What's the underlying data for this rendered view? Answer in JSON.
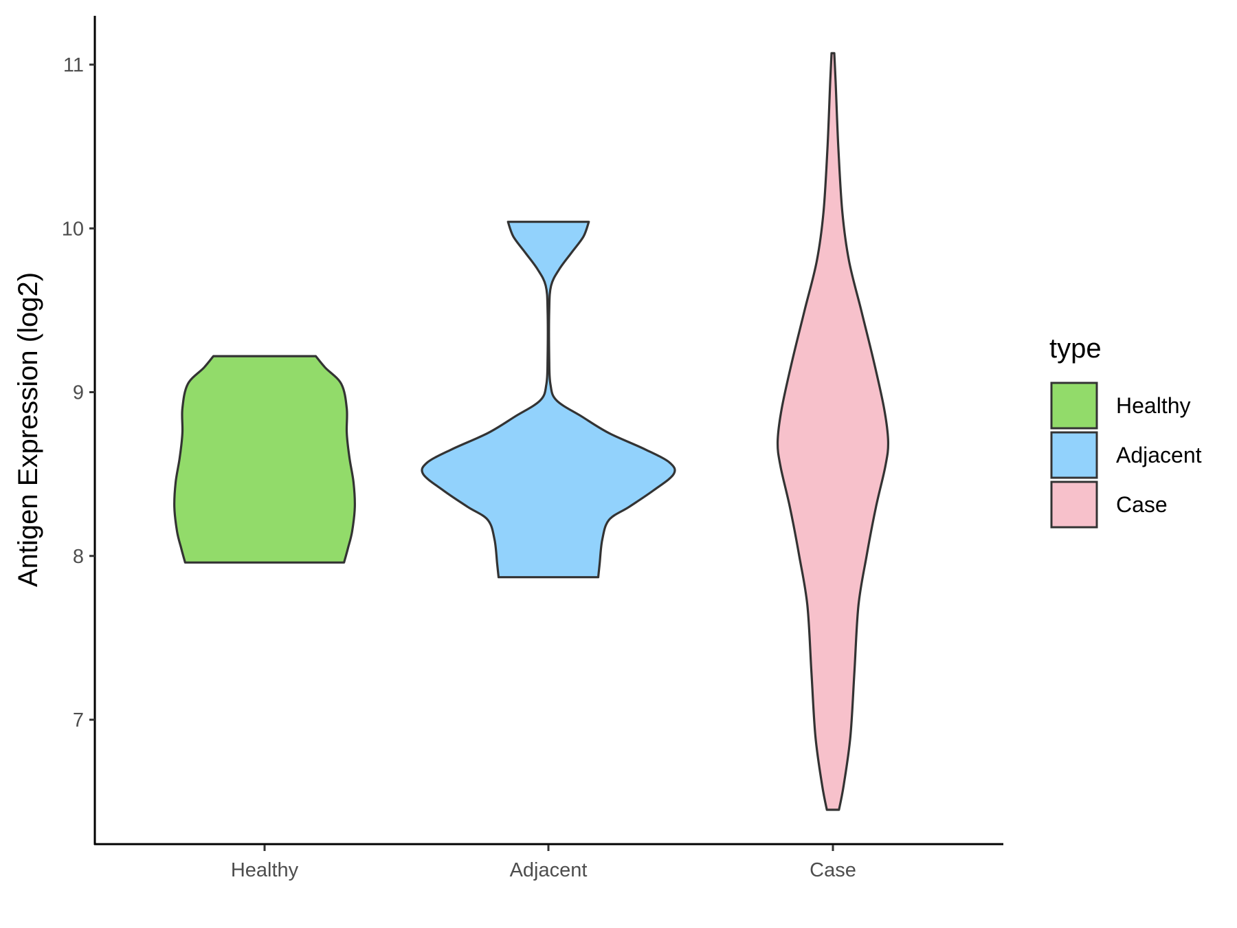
{
  "chart_data": {
    "type": "violin",
    "title": "",
    "xlabel": "",
    "ylabel": "Antigen Expression (log2)",
    "ylim": [
      6.3,
      11.3
    ],
    "yticks": [
      "7",
      "8",
      "9",
      "10",
      "11"
    ],
    "grid": false,
    "legend": {
      "title": "type",
      "position": "right",
      "items": [
        {
          "label": "Healthy",
          "color": "#92DB6A"
        },
        {
          "label": "Adjacent",
          "color": "#92D2FC"
        },
        {
          "label": "Case",
          "color": "#F7C1CB"
        }
      ]
    },
    "categories": [
      "Healthy",
      "Adjacent",
      "Case"
    ],
    "outline_color": "#333333",
    "series": [
      {
        "name": "Healthy",
        "color": "#92DB6A",
        "min": 7.96,
        "max": 9.22,
        "density": [
          [
            7.96,
            0.59
          ],
          [
            8.05,
            0.62
          ],
          [
            8.15,
            0.65
          ],
          [
            8.3,
            0.67
          ],
          [
            8.45,
            0.66
          ],
          [
            8.6,
            0.63
          ],
          [
            8.75,
            0.61
          ],
          [
            8.9,
            0.61
          ],
          [
            9.05,
            0.57
          ],
          [
            9.15,
            0.45
          ],
          [
            9.22,
            0.38
          ]
        ]
      },
      {
        "name": "Adjacent",
        "color": "#92D2FC",
        "min": 7.87,
        "max": 10.04,
        "density": [
          [
            7.87,
            0.37
          ],
          [
            7.95,
            0.38
          ],
          [
            8.1,
            0.4
          ],
          [
            8.22,
            0.45
          ],
          [
            8.3,
            0.6
          ],
          [
            8.4,
            0.78
          ],
          [
            8.5,
            0.93
          ],
          [
            8.57,
            0.9
          ],
          [
            8.65,
            0.72
          ],
          [
            8.75,
            0.45
          ],
          [
            8.85,
            0.25
          ],
          [
            8.95,
            0.06
          ],
          [
            9.05,
            0.015
          ],
          [
            9.2,
            0.006
          ],
          [
            9.5,
            0.006
          ],
          [
            9.65,
            0.02
          ],
          [
            9.75,
            0.08
          ],
          [
            9.85,
            0.17
          ],
          [
            9.95,
            0.26
          ],
          [
            10.04,
            0.3
          ]
        ]
      },
      {
        "name": "Case",
        "color": "#F7C1CB",
        "min": 6.45,
        "max": 11.07,
        "density": [
          [
            6.45,
            0.045
          ],
          [
            6.6,
            0.08
          ],
          [
            6.9,
            0.13
          ],
          [
            7.3,
            0.16
          ],
          [
            7.7,
            0.19
          ],
          [
            8.0,
            0.25
          ],
          [
            8.3,
            0.32
          ],
          [
            8.55,
            0.39
          ],
          [
            8.7,
            0.41
          ],
          [
            8.9,
            0.38
          ],
          [
            9.2,
            0.3
          ],
          [
            9.5,
            0.21
          ],
          [
            9.8,
            0.12
          ],
          [
            10.1,
            0.07
          ],
          [
            10.5,
            0.04
          ],
          [
            10.9,
            0.02
          ],
          [
            11.07,
            0.01
          ]
        ]
      }
    ]
  }
}
